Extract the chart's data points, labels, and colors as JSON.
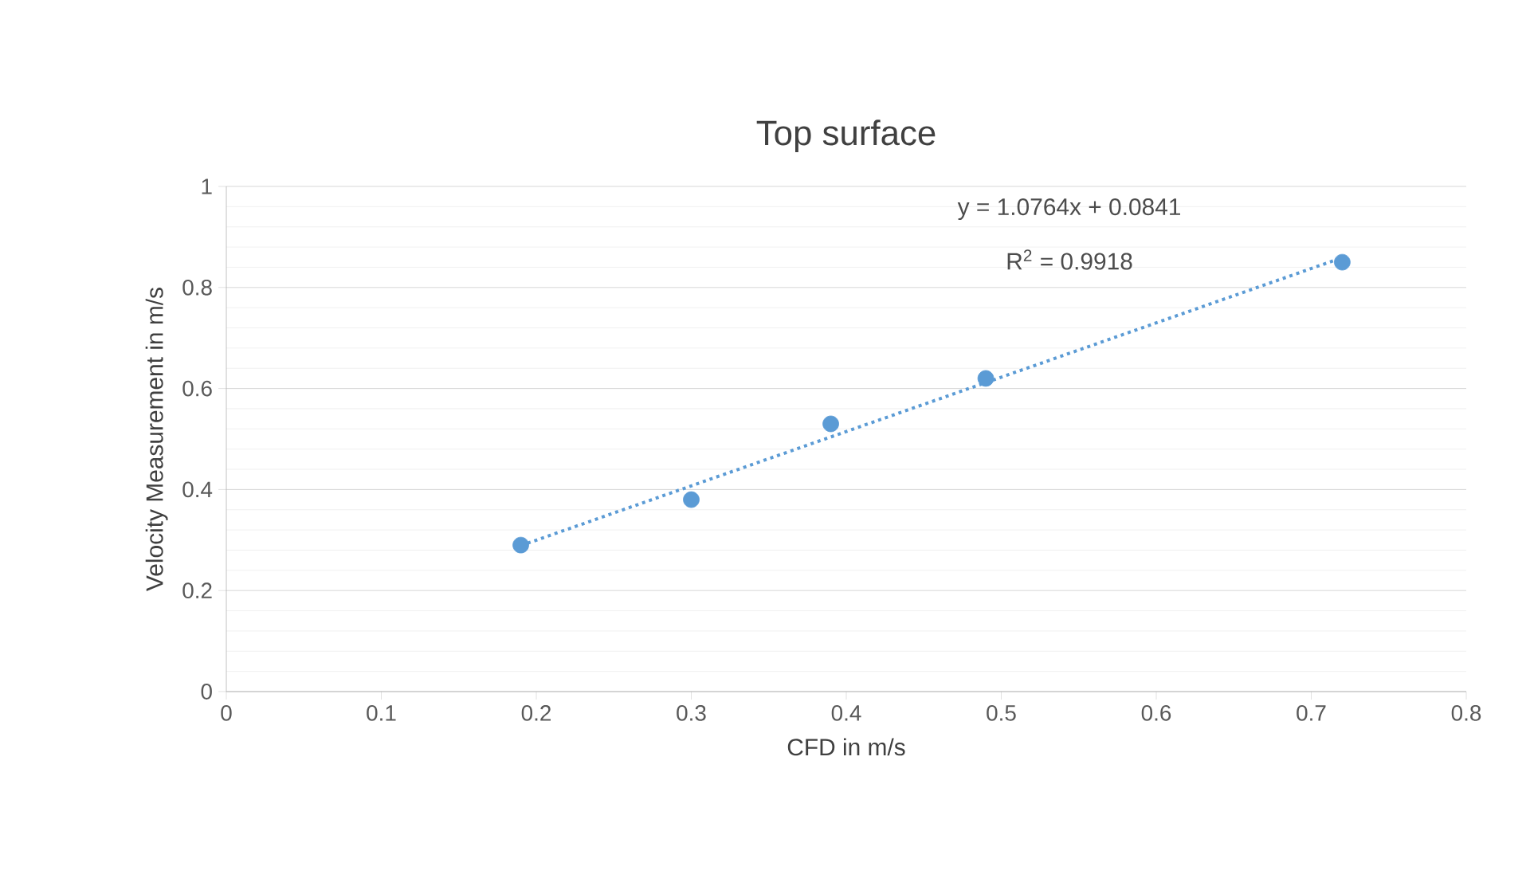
{
  "chart_data": {
    "type": "scatter",
    "title": "Top surface",
    "xlabel": "CFD in m/s",
    "ylabel": "Velocity Measurement in m/s",
    "x": [
      0.19,
      0.3,
      0.39,
      0.49,
      0.72
    ],
    "series": [
      {
        "color": "#5b9bd5",
        "marker": "circle",
        "values": [
          0.29,
          0.38,
          0.53,
          0.62,
          0.85
        ]
      },
      {
        "type": "line",
        "color": "#5b9bd5",
        "line_style": "dotted",
        "marker": "none",
        "x": [
          0.19,
          0.72
        ],
        "values": [
          0.289,
          0.859
        ]
      }
    ],
    "annotations": [
      "y = 1.0764x + 0.0841",
      "R$^{2}$ = 0.9918"
    ],
    "xlim": [
      0,
      0.8
    ],
    "xticks": [
      0,
      0.1,
      0.2,
      0.3,
      0.4,
      0.5,
      0.6,
      0.7,
      0.8
    ],
    "ylim": [
      0,
      1
    ],
    "yticks": [
      0,
      0.2,
      0.4,
      0.6,
      0.8,
      1
    ],
    "grid": "y"
  }
}
